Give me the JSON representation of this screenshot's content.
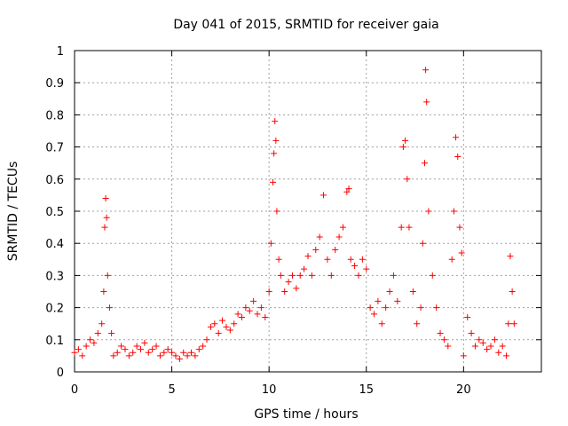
{
  "chart_data": {
    "type": "scatter",
    "title": "Day 041 of 2015, SRMTID for receiver gaia",
    "xlabel": "GPS time / hours",
    "ylabel": "SRMTID / TECUs",
    "xlim": [
      0,
      24
    ],
    "ylim": [
      0,
      1
    ],
    "xticks": [
      0,
      5,
      10,
      15,
      20
    ],
    "xtick_labels": [
      "0",
      "5",
      "10",
      "15",
      "20"
    ],
    "yticks": [
      0,
      0.1,
      0.2,
      0.3,
      0.4,
      0.5,
      0.6,
      0.7,
      0.8,
      0.9,
      1
    ],
    "ytick_labels": [
      "0",
      "0.1",
      "0.2",
      "0.3",
      "0.4",
      "0.5",
      "0.6",
      "0.7",
      "0.8",
      "0.9",
      "1"
    ],
    "grid": true,
    "marker": "+",
    "marker_color": "#ff0000",
    "series": [
      {
        "name": "SRMTID",
        "x": [
          0.0,
          0.2,
          0.4,
          0.6,
          0.8,
          1.0,
          1.2,
          1.4,
          1.5,
          1.55,
          1.6,
          1.65,
          1.7,
          1.8,
          1.9,
          2.0,
          2.2,
          2.4,
          2.6,
          2.8,
          3.0,
          3.2,
          3.4,
          3.6,
          3.8,
          4.0,
          4.2,
          4.4,
          4.6,
          4.8,
          5.0,
          5.2,
          5.4,
          5.6,
          5.8,
          6.0,
          6.2,
          6.4,
          6.6,
          6.8,
          7.0,
          7.2,
          7.4,
          7.6,
          7.8,
          8.0,
          8.2,
          8.4,
          8.6,
          8.8,
          9.0,
          9.2,
          9.4,
          9.6,
          9.8,
          10.0,
          10.1,
          10.2,
          10.25,
          10.3,
          10.35,
          10.4,
          10.5,
          10.6,
          10.8,
          11.0,
          11.2,
          11.4,
          11.6,
          11.8,
          12.0,
          12.2,
          12.4,
          12.6,
          12.8,
          13.0,
          13.2,
          13.4,
          13.6,
          13.8,
          14.0,
          14.1,
          14.2,
          14.4,
          14.6,
          14.8,
          15.0,
          15.2,
          15.4,
          15.6,
          15.8,
          16.0,
          16.2,
          16.4,
          16.6,
          16.8,
          16.9,
          17.0,
          17.1,
          17.2,
          17.4,
          17.6,
          17.8,
          17.9,
          18.0,
          18.05,
          18.1,
          18.2,
          18.4,
          18.6,
          18.8,
          19.0,
          19.2,
          19.4,
          19.5,
          19.6,
          19.7,
          19.8,
          19.9,
          20.0,
          20.2,
          20.4,
          20.6,
          20.8,
          21.0,
          21.2,
          21.4,
          21.6,
          21.8,
          22.0,
          22.2,
          22.3,
          22.4,
          22.5,
          22.6
        ],
        "y": [
          0.06,
          0.07,
          0.05,
          0.08,
          0.1,
          0.09,
          0.12,
          0.15,
          0.25,
          0.45,
          0.54,
          0.48,
          0.3,
          0.2,
          0.12,
          0.05,
          0.06,
          0.08,
          0.07,
          0.05,
          0.06,
          0.08,
          0.07,
          0.09,
          0.06,
          0.07,
          0.08,
          0.05,
          0.06,
          0.07,
          0.06,
          0.05,
          0.04,
          0.06,
          0.05,
          0.06,
          0.05,
          0.07,
          0.08,
          0.1,
          0.14,
          0.15,
          0.12,
          0.16,
          0.14,
          0.13,
          0.15,
          0.18,
          0.17,
          0.2,
          0.19,
          0.22,
          0.18,
          0.2,
          0.17,
          0.25,
          0.4,
          0.59,
          0.68,
          0.78,
          0.72,
          0.5,
          0.35,
          0.3,
          0.25,
          0.28,
          0.3,
          0.26,
          0.3,
          0.32,
          0.36,
          0.3,
          0.38,
          0.42,
          0.55,
          0.35,
          0.3,
          0.38,
          0.42,
          0.45,
          0.56,
          0.57,
          0.35,
          0.33,
          0.3,
          0.35,
          0.32,
          0.2,
          0.18,
          0.22,
          0.15,
          0.2,
          0.25,
          0.3,
          0.22,
          0.45,
          0.7,
          0.72,
          0.6,
          0.45,
          0.25,
          0.15,
          0.2,
          0.4,
          0.65,
          0.94,
          0.84,
          0.5,
          0.3,
          0.2,
          0.12,
          0.1,
          0.08,
          0.35,
          0.5,
          0.73,
          0.67,
          0.45,
          0.37,
          0.05,
          0.17,
          0.12,
          0.08,
          0.1,
          0.09,
          0.07,
          0.08,
          0.1,
          0.06,
          0.08,
          0.05,
          0.15,
          0.36,
          0.25,
          0.15
        ]
      }
    ]
  }
}
